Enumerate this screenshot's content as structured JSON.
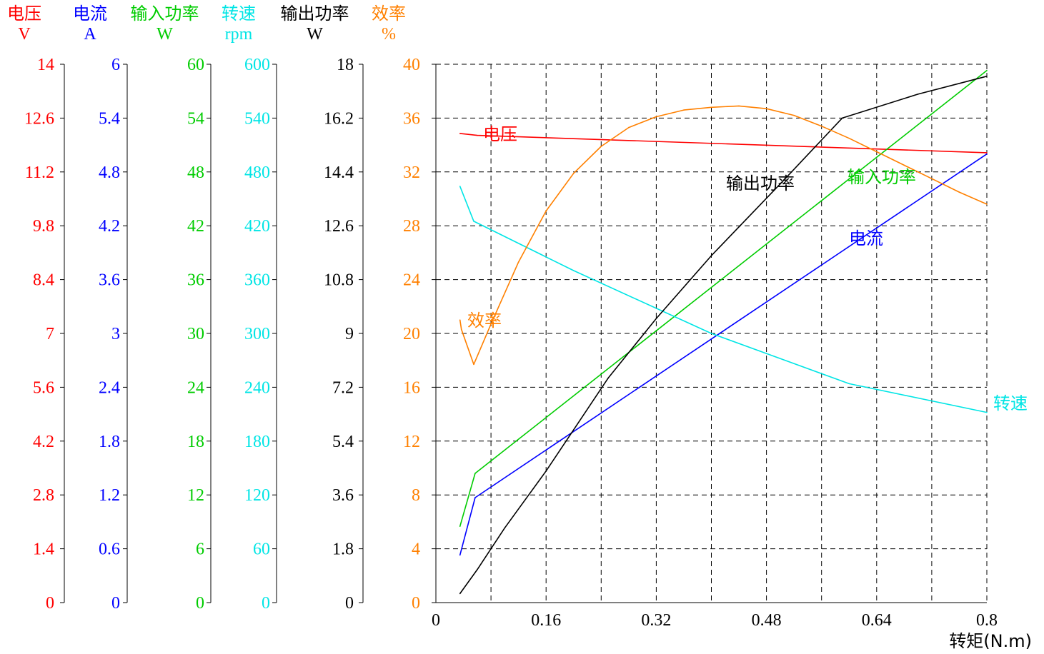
{
  "chart_data": {
    "type": "line",
    "xlabel": "转矩(N.m)",
    "x_ticks": [
      "0",
      "0.16",
      "0.32",
      "0.48",
      "0.64",
      "0.8"
    ],
    "xlim": [
      0,
      0.8
    ],
    "grid": true,
    "axes": [
      {
        "key": "voltage",
        "name": "电压",
        "unit": "V",
        "color": "#ff0000",
        "range": [
          0,
          14
        ],
        "ticks": [
          "0",
          "1.4",
          "2.8",
          "4.2",
          "5.6",
          "7",
          "8.4",
          "9.8",
          "11.2",
          "12.6",
          "14"
        ]
      },
      {
        "key": "current",
        "name": "电流",
        "unit": "A",
        "color": "#0000ff",
        "range": [
          0,
          6
        ],
        "ticks": [
          "0",
          "0.6",
          "1.2",
          "1.8",
          "2.4",
          "3",
          "3.6",
          "4.2",
          "4.8",
          "5.4",
          "6"
        ]
      },
      {
        "key": "input",
        "name": "输入功率",
        "unit": "W",
        "color": "#00cc00",
        "range": [
          0,
          60
        ],
        "ticks": [
          "0",
          "6",
          "12",
          "18",
          "24",
          "30",
          "36",
          "42",
          "48",
          "54",
          "60"
        ]
      },
      {
        "key": "speed",
        "name": "转速",
        "unit": "rpm",
        "color": "#00e5e5",
        "range": [
          0,
          600
        ],
        "ticks": [
          "0",
          "60",
          "120",
          "180",
          "240",
          "300",
          "360",
          "420",
          "480",
          "540",
          "600"
        ]
      },
      {
        "key": "output",
        "name": "输出功率",
        "unit": "W",
        "color": "#000000",
        "range": [
          0,
          18
        ],
        "ticks": [
          "0",
          "1.8",
          "3.6",
          "5.4",
          "7.2",
          "9",
          "10.8",
          "12.6",
          "14.4",
          "16.2",
          "18"
        ]
      },
      {
        "key": "efficiency",
        "name": "效率",
        "unit": "%",
        "color": "#ff8000",
        "range": [
          0,
          40
        ],
        "ticks": [
          "0",
          "4",
          "8",
          "12",
          "16",
          "20",
          "24",
          "28",
          "32",
          "36",
          "40"
        ]
      }
    ],
    "series": [
      {
        "name": "电压",
        "axis": "voltage",
        "color": "#ff0000",
        "x": [
          0.035,
          0.06,
          0.8
        ],
        "y": [
          12.2,
          12.15,
          11.7
        ]
      },
      {
        "name": "电流",
        "axis": "current",
        "color": "#0000ff",
        "x": [
          0.035,
          0.057,
          0.8
        ],
        "y": [
          0.53,
          1.17,
          5.0
        ]
      },
      {
        "name": "输入功率",
        "axis": "input",
        "color": "#00cc00",
        "x": [
          0.035,
          0.057,
          0.8
        ],
        "y": [
          8.5,
          14.4,
          59.3
        ]
      },
      {
        "name": "转速",
        "axis": "speed",
        "color": "#00e5e5",
        "x": [
          0.035,
          0.055,
          0.2,
          0.4,
          0.6,
          0.8
        ],
        "y": [
          464,
          425,
          370,
          300,
          244,
          212
        ]
      },
      {
        "name": "输出功率",
        "axis": "output",
        "color": "#000000",
        "x": [
          0.035,
          0.06,
          0.1,
          0.16,
          0.25,
          0.32,
          0.4,
          0.45,
          0.5,
          0.59,
          0.7,
          0.8
        ],
        "y": [
          0.3,
          1.1,
          2.5,
          4.4,
          7.5,
          9.5,
          11.6,
          12.8,
          14.0,
          16.2,
          17.0,
          17.6
        ]
      },
      {
        "name": "效率",
        "axis": "efficiency",
        "color": "#ff8000",
        "x": [
          0.035,
          0.037,
          0.055,
          0.08,
          0.12,
          0.16,
          0.2,
          0.24,
          0.28,
          0.32,
          0.36,
          0.4,
          0.44,
          0.48,
          0.52,
          0.56,
          0.6,
          0.64,
          0.68,
          0.72,
          0.76,
          0.8
        ],
        "y": [
          21.0,
          20.3,
          17.7,
          20.7,
          25.3,
          29.1,
          31.9,
          33.9,
          35.3,
          36.1,
          36.6,
          36.8,
          36.9,
          36.7,
          36.2,
          35.4,
          34.5,
          33.5,
          32.5,
          31.5,
          30.5,
          29.6
        ]
      }
    ]
  }
}
